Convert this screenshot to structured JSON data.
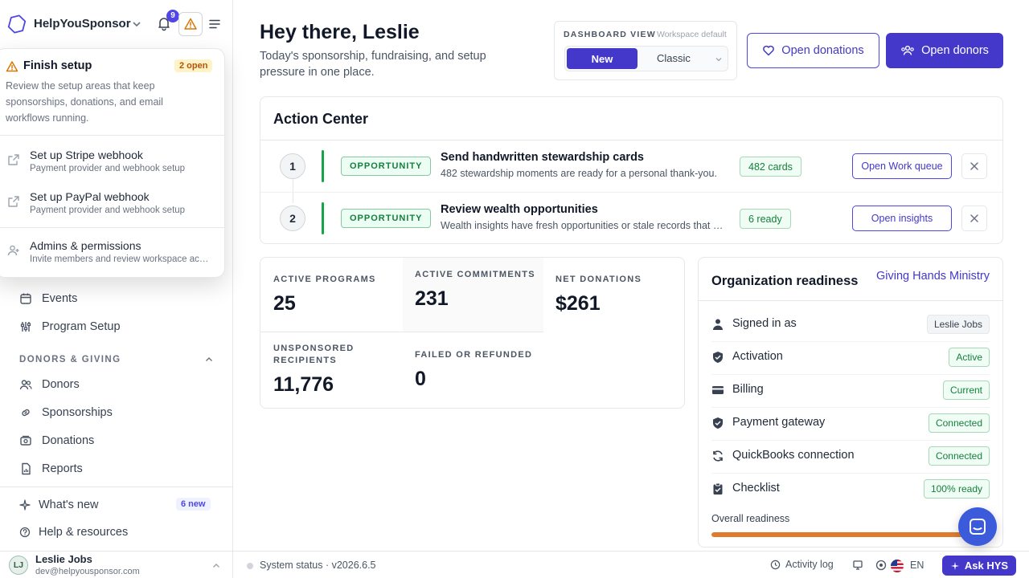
{
  "brand": {
    "name": "HelpYouSponsor",
    "notification_count": "9"
  },
  "setup_popover": {
    "title": "Finish setup",
    "badge": "2 open",
    "description": "Review the setup areas that keep sponsorships, donations, and email workflows running.",
    "items": [
      {
        "title": "Set up Stripe webhook",
        "subtitle": "Payment provider and webhook setup",
        "icon": "external-link-icon"
      },
      {
        "title": "Set up PayPal webhook",
        "subtitle": "Payment provider and webhook setup",
        "icon": "external-link-icon"
      },
      {
        "title": "Admins & permissions",
        "subtitle": "Invite members and review workspace access",
        "icon": "user-plus-icon"
      }
    ]
  },
  "sidebar": {
    "items_top": [
      {
        "label": "Events",
        "icon": "calendar-icon"
      },
      {
        "label": "Program Setup",
        "icon": "sliders-icon"
      }
    ],
    "section_label": "DONORS & GIVING",
    "items_section": [
      {
        "label": "Donors",
        "icon": "users-icon"
      },
      {
        "label": "Sponsorships",
        "icon": "link-icon"
      },
      {
        "label": "Donations",
        "icon": "money-icon"
      },
      {
        "label": "Reports",
        "icon": "report-icon"
      }
    ],
    "whats_new": {
      "label": "What's new",
      "badge": "6 new"
    },
    "help": {
      "label": "Help & resources"
    },
    "user": {
      "initials": "LJ",
      "name": "Leslie Jobs",
      "email": "dev@helpyousponsor.com"
    }
  },
  "header": {
    "greeting": "Hey there, Leslie",
    "subtitle": "Today's sponsorship, fundraising, and setup pressure in one place."
  },
  "dashboard_view": {
    "label": "DASHBOARD VIEW",
    "default_note": "Workspace default",
    "options": [
      "New",
      "Classic"
    ],
    "selected": "New"
  },
  "buttons": {
    "open_donations": "Open donations",
    "open_donors": "Open donors"
  },
  "action_center": {
    "title": "Action Center",
    "items": [
      {
        "num": "1",
        "tag": "OPPORTUNITY",
        "title": "Send handwritten stewardship cards",
        "desc": "482 stewardship moments are ready for a personal thank-you.",
        "count": "482 cards",
        "action": "Open Work queue"
      },
      {
        "num": "2",
        "tag": "OPPORTUNITY",
        "title": "Review wealth opportunities",
        "desc": "Wealth insights have fresh opportunities or stale records that need review.",
        "count": "6 ready",
        "action": "Open insights"
      }
    ]
  },
  "stats": [
    {
      "label": "Active programs",
      "value": "25"
    },
    {
      "label": "Active commitments",
      "value": "231"
    },
    {
      "label": "Net donations",
      "value": "$261"
    },
    {
      "label": "Unsponsored recipients",
      "value": "11,776"
    },
    {
      "label": "Failed or refunded",
      "value": "0"
    }
  ],
  "readiness": {
    "title": "Organization readiness",
    "org": "Giving Hands Ministry",
    "rows": [
      {
        "label": "Signed in as",
        "value": "Leslie Jobs",
        "icon": "person-icon",
        "tone": "gray"
      },
      {
        "label": "Activation",
        "value": "Active",
        "icon": "shield-check-icon",
        "tone": "green"
      },
      {
        "label": "Billing",
        "value": "Current",
        "icon": "credit-card-icon",
        "tone": "green"
      },
      {
        "label": "Payment gateway",
        "value": "Connected",
        "icon": "shield-check-icon",
        "tone": "green"
      },
      {
        "label": "QuickBooks connection",
        "value": "Connected",
        "icon": "sync-icon",
        "tone": "green"
      },
      {
        "label": "Checklist",
        "value": "100% ready",
        "icon": "clipboard-check-icon",
        "tone": "green"
      }
    ],
    "overall_label": "Overall readiness",
    "overall_fraction": 0.92,
    "bar_color": "#e07b2e"
  },
  "status_bar": {
    "system_status": "System status · v2026.6.5",
    "activity_log": "Activity log",
    "language": "EN",
    "ask": "Ask HYS"
  },
  "colors": {
    "accent": "#4338ca",
    "success": "#15803d",
    "warning": "#d97706"
  }
}
